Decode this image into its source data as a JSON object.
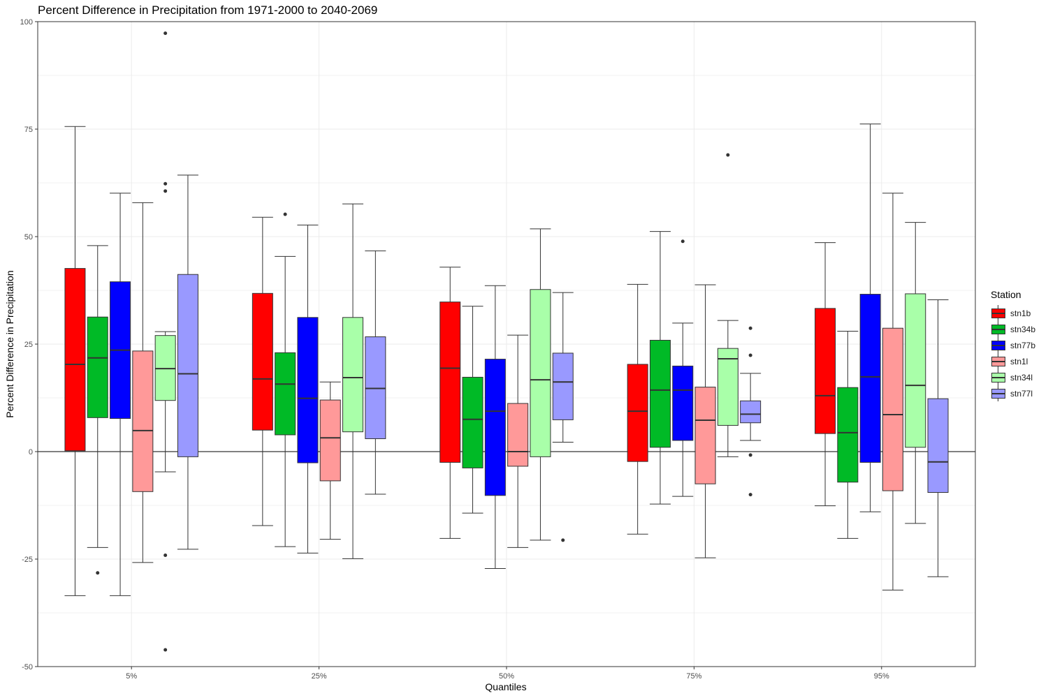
{
  "chart_data": {
    "type": "boxplot",
    "title": "Percent Difference in Precipitation from 1971-2000 to 2040-2069",
    "xlabel": "Quantiles",
    "ylabel": "Percent Difference in Precipitation",
    "ylim": [
      -50,
      100
    ],
    "y_ticks": [
      "100",
      "75",
      "50",
      "25",
      "0",
      "-25",
      "-50"
    ],
    "y_tick_values": [
      100,
      75,
      50,
      25,
      0,
      -25,
      -50
    ],
    "categories": [
      "5%",
      "25%",
      "50%",
      "75%",
      "95%"
    ],
    "grid": true,
    "reference_line_y": 0,
    "legend": {
      "title": "Station",
      "position": "right"
    },
    "series": [
      {
        "name": "stn1b",
        "color": "#FF0000",
        "boxes": [
          {
            "min": -33.5,
            "q1": 0.2,
            "median": 20.3,
            "q3": 42.6,
            "max": 75.6,
            "outliers": []
          },
          {
            "min": -17.2,
            "q1": 5.0,
            "median": 16.9,
            "q3": 36.8,
            "max": 54.5,
            "outliers": []
          },
          {
            "min": -20.2,
            "q1": -2.5,
            "median": 19.4,
            "q3": 34.8,
            "max": 42.9,
            "outliers": []
          },
          {
            "min": -19.2,
            "q1": -2.3,
            "median": 9.4,
            "q3": 20.3,
            "max": 38.9,
            "outliers": []
          },
          {
            "min": -12.6,
            "q1": 4.2,
            "median": 13.0,
            "q3": 33.3,
            "max": 48.6,
            "outliers": []
          }
        ]
      },
      {
        "name": "stn34b",
        "color": "#00BA26",
        "boxes": [
          {
            "min": -22.3,
            "q1": 7.9,
            "median": 21.8,
            "q3": 31.3,
            "max": 47.9,
            "outliers": [
              -28.2
            ]
          },
          {
            "min": -22.1,
            "q1": 3.9,
            "median": 15.7,
            "q3": 23.0,
            "max": 45.4,
            "outliers": [
              55.2
            ]
          },
          {
            "min": -14.3,
            "q1": -3.8,
            "median": 7.5,
            "q3": 17.3,
            "max": 33.8,
            "outliers": []
          },
          {
            "min": -12.2,
            "q1": 1.0,
            "median": 14.3,
            "q3": 25.9,
            "max": 51.2,
            "outliers": []
          },
          {
            "min": -20.2,
            "q1": -7.1,
            "median": 4.4,
            "q3": 14.9,
            "max": 28.0,
            "outliers": []
          }
        ]
      },
      {
        "name": "stn77b",
        "color": "#0000FF",
        "boxes": [
          {
            "min": -33.5,
            "q1": 7.7,
            "median": 23.6,
            "q3": 39.5,
            "max": 60.1,
            "outliers": []
          },
          {
            "min": -23.6,
            "q1": -2.6,
            "median": 12.4,
            "q3": 31.2,
            "max": 52.7,
            "outliers": []
          },
          {
            "min": -27.2,
            "q1": -10.2,
            "median": 9.4,
            "q3": 21.5,
            "max": 38.6,
            "outliers": []
          },
          {
            "min": -10.4,
            "q1": 2.6,
            "median": 14.3,
            "q3": 19.9,
            "max": 29.9,
            "outliers": [
              48.9
            ]
          },
          {
            "min": -14.0,
            "q1": -2.5,
            "median": 17.4,
            "q3": 36.6,
            "max": 76.2,
            "outliers": []
          }
        ]
      },
      {
        "name": "stn1l",
        "color": "#FF9999",
        "boxes": [
          {
            "min": -25.8,
            "q1": -9.3,
            "median": 4.9,
            "q3": 23.4,
            "max": 57.9,
            "outliers": []
          },
          {
            "min": -20.4,
            "q1": -6.8,
            "median": 3.2,
            "q3": 12.0,
            "max": 16.2,
            "outliers": []
          },
          {
            "min": -22.3,
            "q1": -3.4,
            "median": 0.0,
            "q3": 11.2,
            "max": 27.1,
            "outliers": []
          },
          {
            "min": -24.7,
            "q1": -7.5,
            "median": 7.3,
            "q3": 15.0,
            "max": 38.8,
            "outliers": []
          },
          {
            "min": -32.2,
            "q1": -9.1,
            "median": 8.6,
            "q3": 28.7,
            "max": 60.1,
            "outliers": []
          }
        ]
      },
      {
        "name": "stn34l",
        "color": "#A9FFA9",
        "boxes": [
          {
            "min": -4.7,
            "q1": 11.9,
            "median": 19.3,
            "q3": 27.0,
            "max": 27.9,
            "outliers": [
              97.3,
              62.3,
              60.6,
              -24.1,
              -46.1
            ]
          },
          {
            "min": -24.9,
            "q1": 4.6,
            "median": 17.2,
            "q3": 31.2,
            "max": 57.6,
            "outliers": []
          },
          {
            "min": -20.6,
            "q1": -1.2,
            "median": 16.7,
            "q3": 37.7,
            "max": 51.8,
            "outliers": []
          },
          {
            "min": -1.2,
            "q1": 6.1,
            "median": 21.6,
            "q3": 24.0,
            "max": 30.5,
            "outliers": [
              69.0
            ]
          },
          {
            "min": -16.7,
            "q1": 1.0,
            "median": 15.4,
            "q3": 36.7,
            "max": 53.3,
            "outliers": []
          }
        ]
      },
      {
        "name": "stn77l",
        "color": "#9999FF",
        "boxes": [
          {
            "min": -22.7,
            "q1": -1.2,
            "median": 18.1,
            "q3": 41.2,
            "max": 64.3,
            "outliers": []
          },
          {
            "min": -9.9,
            "q1": 3.0,
            "median": 14.7,
            "q3": 26.7,
            "max": 46.7,
            "outliers": []
          },
          {
            "min": 2.2,
            "q1": 7.4,
            "median": 16.2,
            "q3": 22.9,
            "max": 37.0,
            "outliers": [
              -20.6
            ]
          },
          {
            "min": 2.6,
            "q1": 6.7,
            "median": 8.7,
            "q3": 11.8,
            "max": 18.2,
            "outliers": [
              28.7,
              22.4,
              -0.8,
              -10.0
            ]
          },
          {
            "min": -29.1,
            "q1": -9.5,
            "median": -2.4,
            "q3": 12.3,
            "max": 35.3,
            "outliers": []
          }
        ]
      }
    ]
  }
}
